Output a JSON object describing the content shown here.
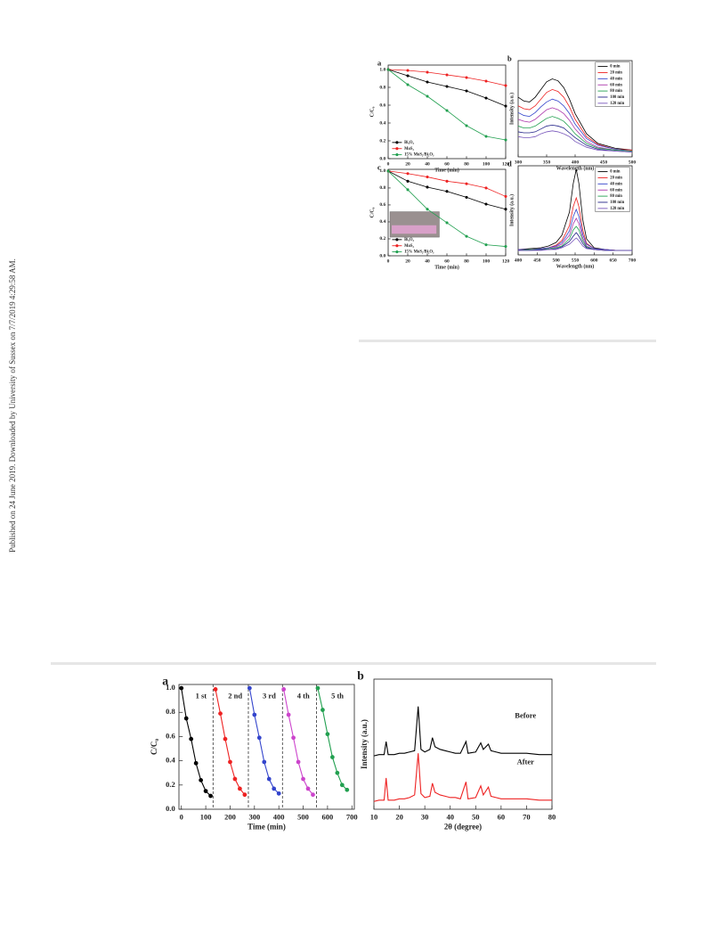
{
  "side_note": "Published on 24 June 2019. Downloaded by University of Sussex on 7/7/2019 4:29:58 AM.",
  "chart_data": [
    {
      "type": "line",
      "label": "a",
      "xlabel": "Time (min)",
      "ylabel": "C/C₀",
      "xlim": [
        0,
        120
      ],
      "xticks": [
        0,
        20,
        40,
        60,
        80,
        100,
        120
      ],
      "ylim": [
        0,
        1.05
      ],
      "yticks": [
        {
          "value": 0,
          "label": "0.0"
        },
        0.2,
        0.4,
        0.6,
        0.8,
        {
          "value": 1,
          "label": "1.0"
        }
      ],
      "markers": true,
      "legend": "lower left",
      "x": [
        0,
        20,
        40,
        60,
        80,
        100,
        120
      ],
      "series": [
        {
          "name": "Bi₂O₃",
          "color": "#000000",
          "values": [
            1.0,
            0.93,
            0.86,
            0.81,
            0.76,
            0.68,
            0.59
          ]
        },
        {
          "name": "MoS₂",
          "color": "#ee2222",
          "values": [
            1.0,
            0.99,
            0.97,
            0.94,
            0.91,
            0.87,
            0.82
          ]
        },
        {
          "name": "15% MoS₂/Bi₂O₃",
          "color": "#22a050",
          "values": [
            1.0,
            0.83,
            0.7,
            0.54,
            0.37,
            0.25,
            0.21
          ]
        }
      ]
    },
    {
      "type": "line",
      "label": "b",
      "xlabel": "Wavelength (nm)",
      "ylabel": "Intensity (a.u.)",
      "xlim": [
        300,
        500
      ],
      "xticks": [
        300,
        350,
        400,
        450,
        500
      ],
      "ylim": [
        0,
        1
      ],
      "markers": false,
      "legend": "upper right",
      "x": [
        300,
        310,
        320,
        330,
        340,
        350,
        360,
        370,
        380,
        390,
        400,
        420,
        440,
        470,
        500
      ],
      "series": [
        {
          "name": "0 min",
          "color": "#000000",
          "values": [
            0.62,
            0.58,
            0.57,
            0.62,
            0.7,
            0.78,
            0.81,
            0.79,
            0.72,
            0.6,
            0.45,
            0.24,
            0.14,
            0.09,
            0.07
          ]
        },
        {
          "name": "20 min",
          "color": "#ee2222",
          "values": [
            0.53,
            0.5,
            0.49,
            0.53,
            0.6,
            0.67,
            0.7,
            0.68,
            0.62,
            0.52,
            0.39,
            0.21,
            0.13,
            0.08,
            0.07
          ]
        },
        {
          "name": "40 min",
          "color": "#3344cc",
          "values": [
            0.46,
            0.43,
            0.42,
            0.46,
            0.52,
            0.57,
            0.6,
            0.58,
            0.53,
            0.45,
            0.34,
            0.19,
            0.12,
            0.08,
            0.06
          ]
        },
        {
          "name": "60 min",
          "color": "#aa33aa",
          "values": [
            0.39,
            0.37,
            0.36,
            0.39,
            0.44,
            0.49,
            0.51,
            0.49,
            0.45,
            0.38,
            0.29,
            0.16,
            0.1,
            0.07,
            0.06
          ]
        },
        {
          "name": "80 min",
          "color": "#22a050",
          "values": [
            0.32,
            0.3,
            0.3,
            0.32,
            0.36,
            0.4,
            0.42,
            0.4,
            0.37,
            0.31,
            0.24,
            0.14,
            0.09,
            0.07,
            0.06
          ]
        },
        {
          "name": "100 min",
          "color": "#222288",
          "values": [
            0.26,
            0.25,
            0.25,
            0.26,
            0.29,
            0.32,
            0.33,
            0.32,
            0.3,
            0.25,
            0.2,
            0.12,
            0.08,
            0.06,
            0.05
          ]
        },
        {
          "name": "120 min",
          "color": "#7755bb",
          "values": [
            0.21,
            0.2,
            0.2,
            0.21,
            0.24,
            0.26,
            0.27,
            0.26,
            0.24,
            0.21,
            0.16,
            0.1,
            0.07,
            0.06,
            0.05
          ]
        }
      ]
    },
    {
      "type": "line",
      "label": "c",
      "xlabel": "Time (min)",
      "ylabel": "C/C₀",
      "xlim": [
        0,
        120
      ],
      "xticks": [
        0,
        20,
        40,
        60,
        80,
        100,
        120
      ],
      "ylim": [
        0,
        1.02
      ],
      "yticks": [
        {
          "value": 0,
          "label": "0.0"
        },
        0.2,
        0.4,
        0.6,
        0.8,
        {
          "value": 1,
          "label": "1.0"
        }
      ],
      "markers": true,
      "legend": "lower left",
      "inset": true,
      "x": [
        0,
        20,
        40,
        60,
        80,
        100,
        120
      ],
      "series": [
        {
          "name": "Bi₂O₃",
          "color": "#000000",
          "values": [
            1.0,
            0.88,
            0.81,
            0.76,
            0.69,
            0.61,
            0.55
          ]
        },
        {
          "name": "MoS₂",
          "color": "#ee2222",
          "values": [
            1.0,
            0.97,
            0.93,
            0.88,
            0.85,
            0.8,
            0.7
          ]
        },
        {
          "name": "15% MoS₂/Bi₂O₃",
          "color": "#22a050",
          "values": [
            1.0,
            0.78,
            0.55,
            0.39,
            0.23,
            0.13,
            0.11
          ]
        }
      ]
    },
    {
      "type": "line",
      "label": "d",
      "xlabel": "Wavelength (nm)",
      "ylabel": "Intensity (a.u.)",
      "xlim": [
        400,
        700
      ],
      "xticks": [
        400,
        450,
        500,
        550,
        600,
        650,
        700
      ],
      "ylim": [
        0,
        1
      ],
      "markers": false,
      "legend": "upper right",
      "x": [
        400,
        430,
        460,
        480,
        500,
        515,
        525,
        535,
        545,
        553,
        560,
        570,
        580,
        600,
        630,
        660,
        700
      ],
      "series": [
        {
          "name": "0 min",
          "color": "#000000",
          "values": [
            0.06,
            0.07,
            0.08,
            0.1,
            0.14,
            0.22,
            0.35,
            0.48,
            0.8,
            0.96,
            0.8,
            0.4,
            0.18,
            0.08,
            0.06,
            0.05,
            0.05
          ]
        },
        {
          "name": "20 min",
          "color": "#ee2222",
          "values": [
            0.06,
            0.06,
            0.07,
            0.08,
            0.11,
            0.16,
            0.24,
            0.33,
            0.54,
            0.64,
            0.54,
            0.28,
            0.13,
            0.07,
            0.06,
            0.05,
            0.05
          ]
        },
        {
          "name": "40 min",
          "color": "#3344cc",
          "values": [
            0.06,
            0.06,
            0.07,
            0.08,
            0.1,
            0.14,
            0.2,
            0.27,
            0.43,
            0.51,
            0.43,
            0.23,
            0.12,
            0.07,
            0.06,
            0.05,
            0.05
          ]
        },
        {
          "name": "60 min",
          "color": "#aa33aa",
          "values": [
            0.05,
            0.06,
            0.06,
            0.07,
            0.09,
            0.12,
            0.17,
            0.22,
            0.35,
            0.41,
            0.35,
            0.19,
            0.1,
            0.06,
            0.05,
            0.05,
            0.05
          ]
        },
        {
          "name": "80 min",
          "color": "#22a050",
          "values": [
            0.05,
            0.06,
            0.06,
            0.07,
            0.08,
            0.1,
            0.14,
            0.18,
            0.28,
            0.32,
            0.28,
            0.16,
            0.09,
            0.06,
            0.05,
            0.05,
            0.05
          ]
        },
        {
          "name": "100 min",
          "color": "#222288",
          "values": [
            0.05,
            0.05,
            0.06,
            0.06,
            0.07,
            0.09,
            0.12,
            0.15,
            0.21,
            0.25,
            0.21,
            0.13,
            0.08,
            0.06,
            0.05,
            0.05,
            0.05
          ]
        },
        {
          "name": "120 min",
          "color": "#7755bb",
          "values": [
            0.05,
            0.05,
            0.05,
            0.06,
            0.06,
            0.08,
            0.1,
            0.12,
            0.16,
            0.19,
            0.16,
            0.1,
            0.07,
            0.06,
            0.05,
            0.05,
            0.05
          ]
        }
      ]
    },
    {
      "type": "line",
      "label": "a",
      "xlabel": "Time (min)",
      "ylabel": "C/C₀",
      "xlim": [
        -10,
        710
      ],
      "xticks": [
        0,
        100,
        200,
        300,
        400,
        500,
        600,
        700
      ],
      "ylim": [
        0,
        1.03
      ],
      "yticks": [
        {
          "value": 0,
          "label": "0.0"
        },
        0.2,
        0.4,
        0.6,
        0.8,
        {
          "value": 1,
          "label": "1.0"
        }
      ],
      "markers": true,
      "legend": "inline",
      "vlines": [
        130,
        275,
        415,
        555
      ],
      "series": [
        {
          "name": "1 st",
          "color": "#000000",
          "x": [
            0,
            20,
            40,
            60,
            80,
            100,
            120
          ],
          "values": [
            1.0,
            0.75,
            0.58,
            0.38,
            0.24,
            0.15,
            0.11
          ]
        },
        {
          "name": "2 nd",
          "color": "#ee2222",
          "x": [
            140,
            160,
            180,
            200,
            220,
            240,
            260
          ],
          "values": [
            0.99,
            0.79,
            0.58,
            0.39,
            0.25,
            0.17,
            0.12
          ]
        },
        {
          "name": "3 rd",
          "color": "#3344cc",
          "x": [
            280,
            300,
            320,
            340,
            360,
            380,
            400
          ],
          "values": [
            1.0,
            0.78,
            0.59,
            0.39,
            0.25,
            0.17,
            0.13
          ]
        },
        {
          "name": "4 th",
          "color": "#cc44cc",
          "x": [
            420,
            440,
            460,
            480,
            500,
            520,
            540
          ],
          "values": [
            0.99,
            0.78,
            0.59,
            0.39,
            0.25,
            0.17,
            0.12
          ]
        },
        {
          "name": "5 th",
          "color": "#22a050",
          "x": [
            560,
            580,
            600,
            620,
            640,
            660,
            680
          ],
          "values": [
            1.0,
            0.82,
            0.62,
            0.43,
            0.3,
            0.2,
            0.16
          ]
        }
      ]
    },
    {
      "type": "line",
      "label": "b",
      "xlabel": "2θ (degree)",
      "ylabel": "Intensity (a.u.)",
      "xlim": [
        10,
        80
      ],
      "xticks": [
        10,
        20,
        30,
        40,
        50,
        60,
        70,
        80
      ],
      "ylim": [
        0,
        1
      ],
      "markers": false,
      "legend": "inline",
      "x": [
        10,
        12,
        14,
        14.8,
        15.6,
        18,
        20,
        22,
        24,
        26,
        27.4,
        28.5,
        30,
        32,
        33,
        34,
        36,
        38,
        40,
        42,
        44,
        46.2,
        47,
        50,
        52,
        53,
        55,
        56,
        58,
        60,
        65,
        70,
        75,
        80
      ],
      "series": [
        {
          "name": "Before",
          "color": "#000000",
          "values": [
            0.41,
            0.42,
            0.42,
            0.52,
            0.42,
            0.42,
            0.43,
            0.43,
            0.44,
            0.45,
            0.79,
            0.46,
            0.44,
            0.46,
            0.55,
            0.48,
            0.46,
            0.45,
            0.44,
            0.43,
            0.43,
            0.52,
            0.43,
            0.44,
            0.51,
            0.46,
            0.5,
            0.45,
            0.44,
            0.43,
            0.43,
            0.43,
            0.42,
            0.42
          ]
        },
        {
          "name": "After",
          "color": "#ee2222",
          "values": [
            0.06,
            0.07,
            0.07,
            0.24,
            0.07,
            0.07,
            0.08,
            0.08,
            0.09,
            0.11,
            0.43,
            0.12,
            0.09,
            0.1,
            0.2,
            0.13,
            0.11,
            0.1,
            0.09,
            0.09,
            0.08,
            0.21,
            0.08,
            0.09,
            0.18,
            0.11,
            0.17,
            0.1,
            0.09,
            0.08,
            0.08,
            0.08,
            0.07,
            0.07
          ]
        }
      ]
    }
  ]
}
